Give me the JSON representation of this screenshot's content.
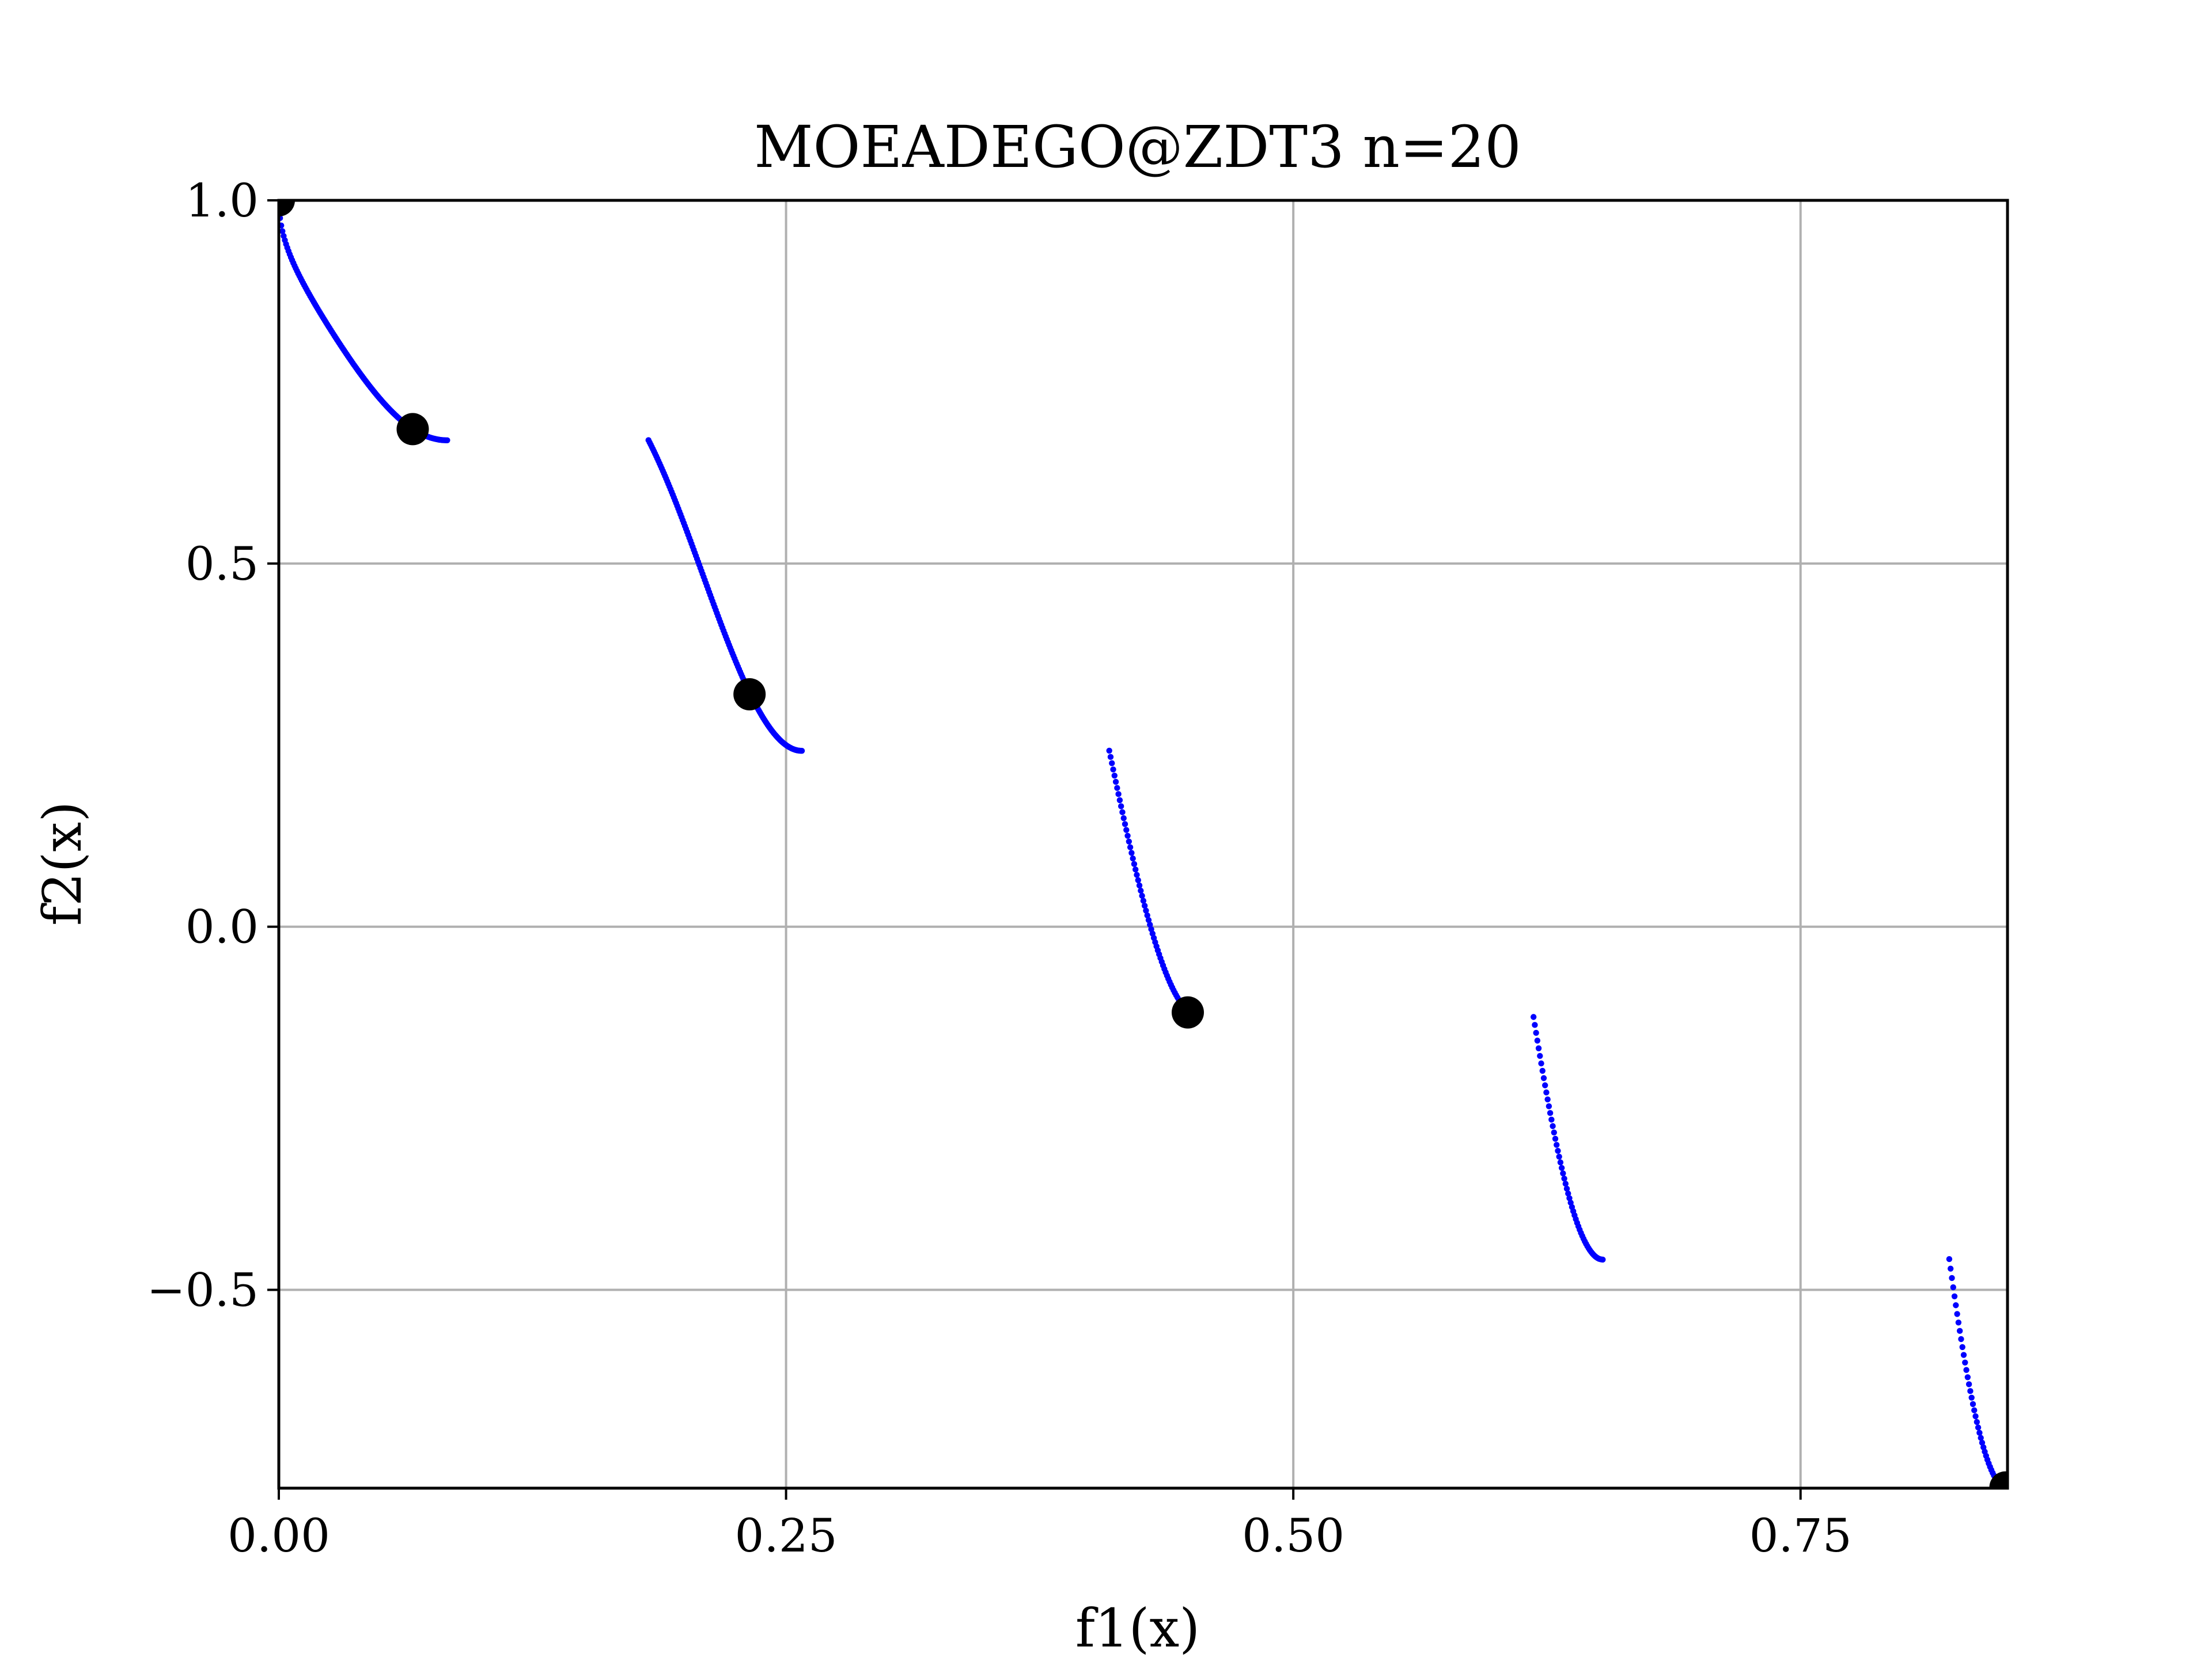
{
  "chart_data": {
    "type": "scatter",
    "title": "MOEADEGO@ZDT3 n=20",
    "xlabel": "f1(x)",
    "ylabel": "f2(x)",
    "xlim": [
      0.0,
      0.852
    ],
    "ylim": [
      -0.773,
      1.0
    ],
    "x_ticks": [
      0.0,
      0.25,
      0.5,
      0.75
    ],
    "x_tick_labels": [
      "0.00",
      "0.25",
      "0.50",
      "0.75"
    ],
    "y_ticks": [
      -0.5,
      0.0,
      0.5,
      1.0
    ],
    "y_tick_labels": [
      "−0.5",
      "0.0",
      "0.5",
      "1.0"
    ],
    "grid": true,
    "legend": false,
    "series": [
      {
        "role": "front",
        "color": "#0000ff",
        "marker_size": 1.3,
        "segments": [
          {
            "x_start": 0.0,
            "x_end": 0.083,
            "points": 140
          },
          {
            "x_start": 0.1822,
            "x_end": 0.2578,
            "points": 140
          },
          {
            "x_start": 0.4093,
            "x_end": 0.4539,
            "points": 70
          },
          {
            "x_start": 0.6184,
            "x_end": 0.6525,
            "points": 55
          },
          {
            "x_start": 0.8233,
            "x_end": 0.8518,
            "points": 45
          }
        ]
      },
      {
        "role": "samples",
        "color": "#000000",
        "marker_size": 7,
        "points": [
          {
            "x": 0.0,
            "y": 1.0
          },
          {
            "x": 0.066,
            "y": 0.685
          },
          {
            "x": 0.232,
            "y": 0.32
          },
          {
            "x": 0.448,
            "y": -0.118
          },
          {
            "x": 0.851,
            "y": -0.772
          }
        ]
      }
    ]
  }
}
